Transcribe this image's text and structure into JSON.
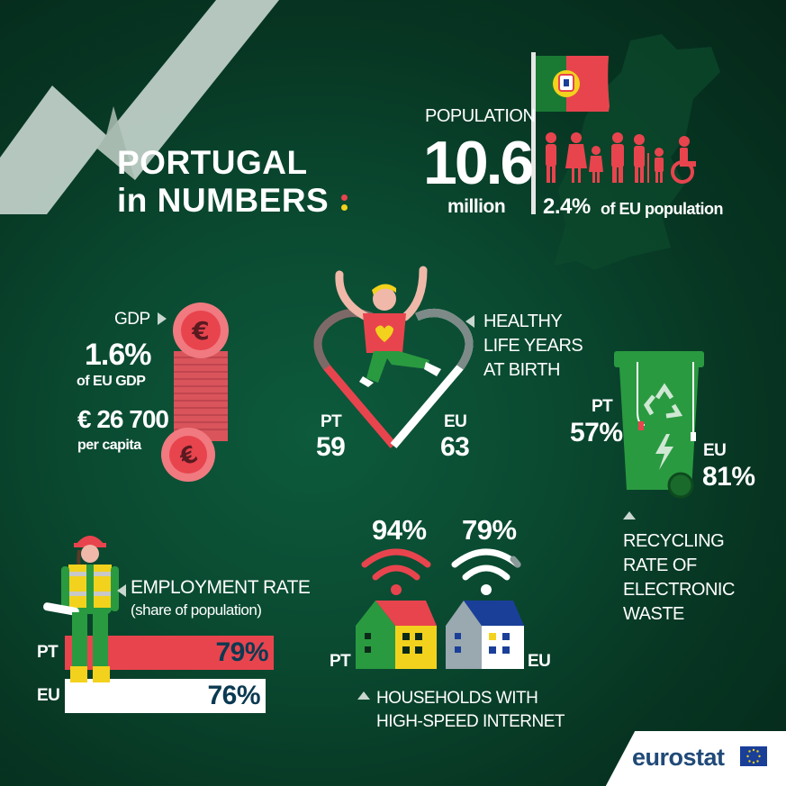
{
  "title": {
    "line1": "PORTUGAL",
    "line2_in": "in",
    "line2_rest": "NUMBERS"
  },
  "population": {
    "label": "POPULATION",
    "value": "10.6",
    "unit": "million",
    "eu_share": "2.4%",
    "eu_share_text": "of EU population"
  },
  "gdp": {
    "label": "GDP",
    "eu_share": "1.6%",
    "eu_share_text": "of EU GDP",
    "per_capita": "€ 26 700",
    "per_capita_text": "per capita"
  },
  "healthy_life_years": {
    "label_lines": [
      "HEALTHY",
      "LIFE YEARS",
      "AT BIRTH"
    ],
    "pt_label": "PT",
    "pt_value": "59",
    "eu_label": "EU",
    "eu_value": "63"
  },
  "recycling": {
    "label_lines": [
      "RECYCLING",
      "RATE OF",
      "ELECTRONIC",
      "WASTE"
    ],
    "pt_label": "PT",
    "pt_value": "57%",
    "eu_label": "EU",
    "eu_value": "81%"
  },
  "employment": {
    "label": "EMPLOYMENT RATE",
    "sublabel": "(share of population)",
    "pt_label": "PT",
    "pt_value": "79%",
    "pt_rate": 79,
    "eu_label": "EU",
    "eu_value": "76%",
    "eu_rate": 76
  },
  "internet": {
    "label_lines": [
      "HOUSEHOLDS WITH",
      "HIGH-SPEED INTERNET"
    ],
    "pt_label": "PT",
    "pt_value": "94%",
    "eu_label": "EU",
    "eu_value": "79%"
  },
  "branding": {
    "logo_text": "eurostat"
  },
  "colors": {
    "background": "#0a4a31",
    "accent_red": "#e8444e",
    "accent_green": "#2a9a40",
    "accent_yellow": "#f2d21c",
    "coin_pink": "#f07a7f",
    "eurostat_blue": "#204a78"
  },
  "icons": [
    "portugal-flag",
    "people-icons",
    "coin-stack",
    "jumping-person-heart",
    "recycling-bin",
    "worker",
    "wifi-houses",
    "eu-flag"
  ]
}
